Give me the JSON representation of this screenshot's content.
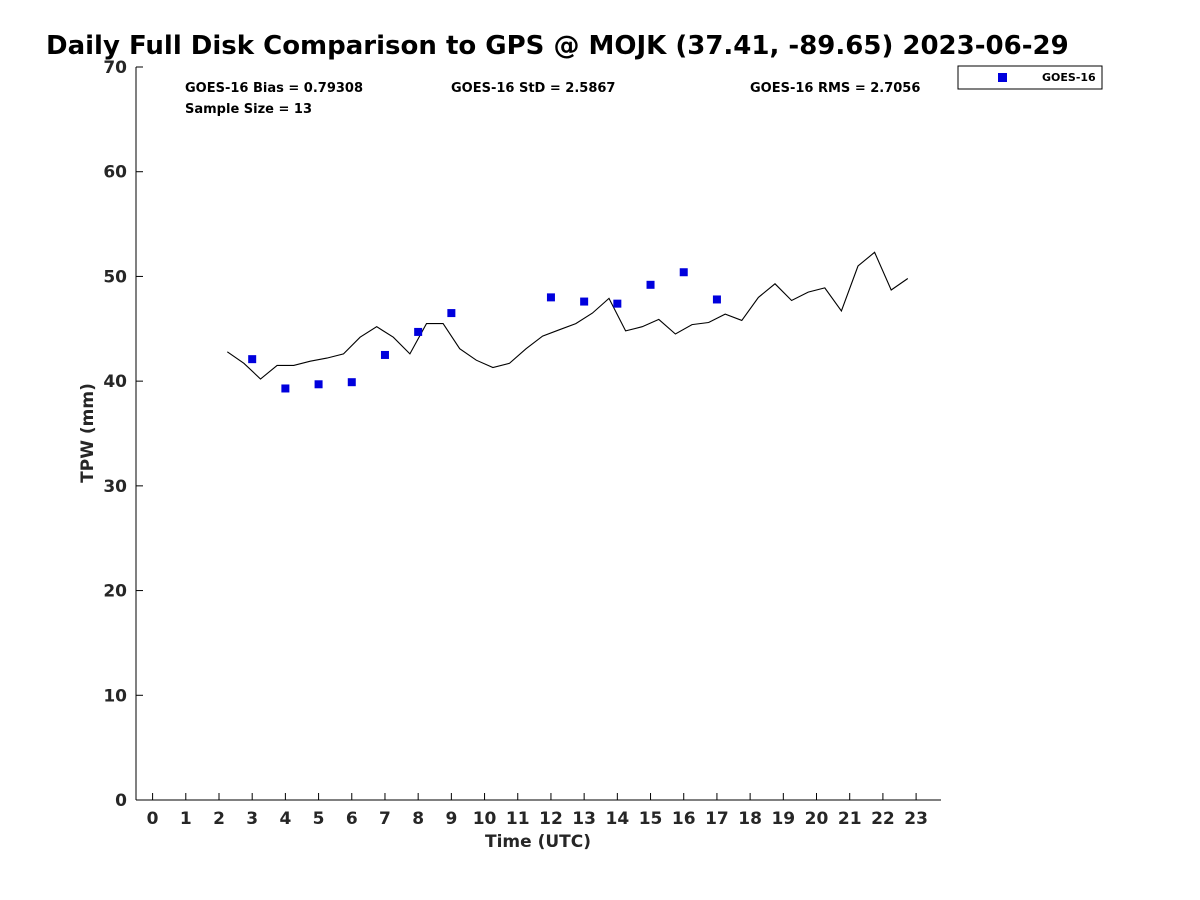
{
  "chart_data": {
    "type": "scatter",
    "title": "Daily Full Disk Comparison to GPS @ MOJK (37.41, -89.65) 2023-06-29",
    "xlabel": "Time (UTC)",
    "ylabel": "TPW (mm)",
    "xlim": [
      -0.5,
      23.75
    ],
    "ylim": [
      0,
      70
    ],
    "x_ticks": [
      "0",
      "1",
      "2",
      "3",
      "4",
      "5",
      "6",
      "7",
      "8",
      "9",
      "10",
      "11",
      "12",
      "13",
      "14",
      "15",
      "16",
      "17",
      "18",
      "19",
      "20",
      "21",
      "22",
      "23"
    ],
    "y_ticks": [
      "0",
      "10",
      "20",
      "30",
      "40",
      "50",
      "60",
      "70"
    ],
    "grid": false,
    "legend": {
      "position": "top-right"
    },
    "stats": {
      "bias": "GOES-16 Bias = 0.79308",
      "std": "GOES-16 StD = 2.5867",
      "rms": "GOES-16 RMS = 2.7056",
      "sample_size": "Sample Size = 13"
    },
    "series": [
      {
        "name": "GOES-16",
        "type": "scatter",
        "color": "#0000dd",
        "marker": "square",
        "x": [
          3,
          4,
          5,
          6,
          7,
          8,
          9,
          12,
          13,
          14,
          15,
          16,
          17
        ],
        "y": [
          42.1,
          39.3,
          39.7,
          39.9,
          42.5,
          44.7,
          46.5,
          48.0,
          47.6,
          47.4,
          49.2,
          50.4,
          47.8
        ]
      },
      {
        "type": "line",
        "color": "#000000",
        "x": [
          2.25,
          2.75,
          3.25,
          3.75,
          4.25,
          4.75,
          5.25,
          5.75,
          6.25,
          6.75,
          7.25,
          7.75,
          8.25,
          8.75,
          9.25,
          9.75,
          10.25,
          10.75,
          11.25,
          11.75,
          12.25,
          12.75,
          13.25,
          13.75,
          14.25,
          14.75,
          15.25,
          15.75,
          16.25,
          16.75,
          17.25,
          17.75,
          18.25,
          18.75,
          19.25,
          19.75,
          20.25,
          20.75,
          21.25,
          21.75,
          22.25,
          22.75
        ],
        "y": [
          42.8,
          41.7,
          40.2,
          41.5,
          41.5,
          41.9,
          42.2,
          42.6,
          44.2,
          45.2,
          44.2,
          42.6,
          45.5,
          45.5,
          43.1,
          42.0,
          41.3,
          41.7,
          43.1,
          44.3,
          44.9,
          45.5,
          46.5,
          47.9,
          44.8,
          45.2,
          45.9,
          44.5,
          45.4,
          45.6,
          46.4,
          45.8,
          48.0,
          49.3,
          47.7,
          48.5,
          48.9,
          46.7,
          51.0,
          52.3,
          48.7,
          49.8
        ]
      }
    ]
  }
}
